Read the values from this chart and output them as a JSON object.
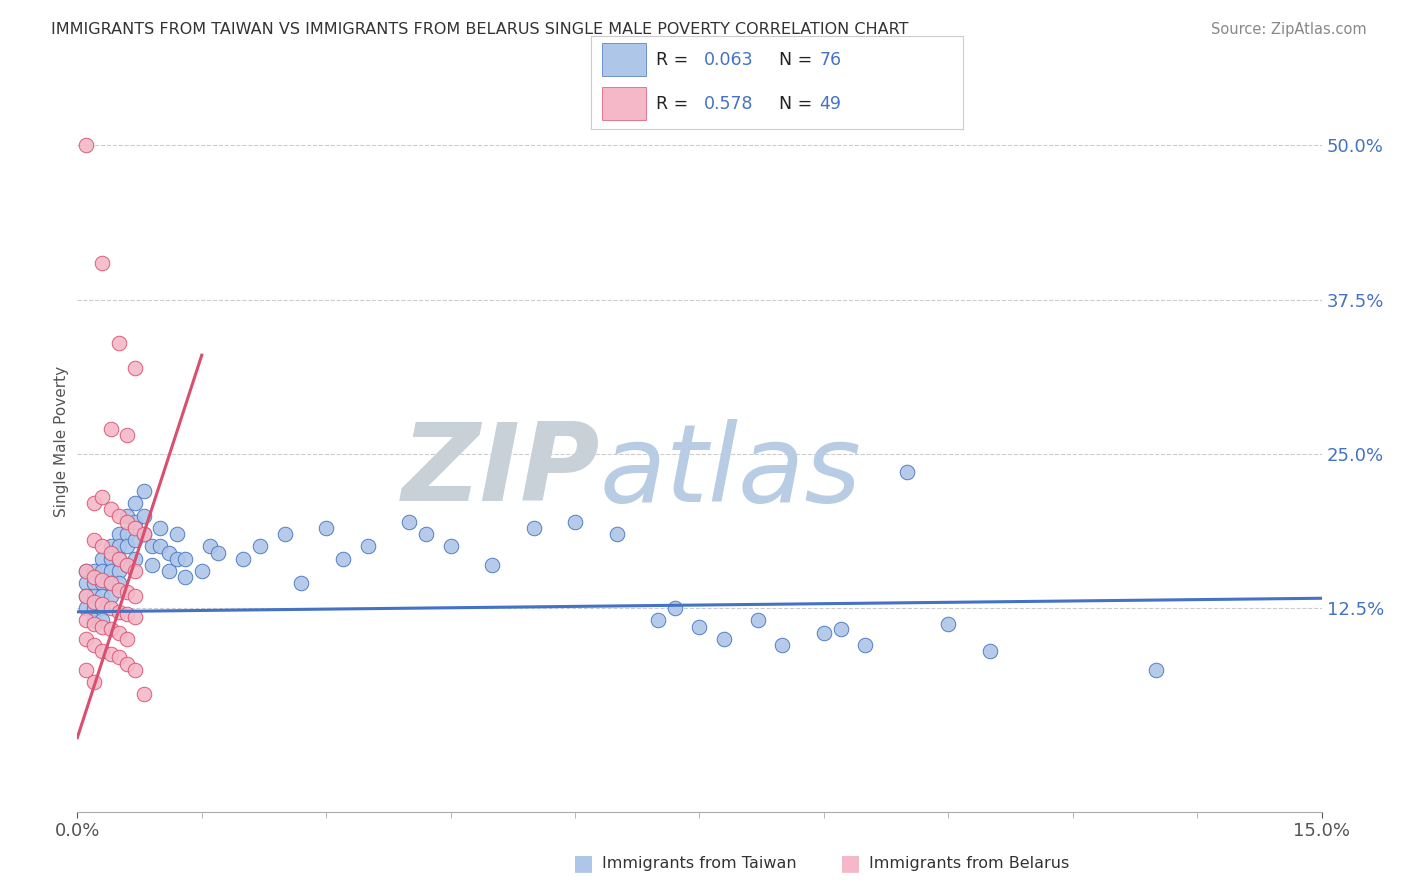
{
  "title": "IMMIGRANTS FROM TAIWAN VS IMMIGRANTS FROM BELARUS SINGLE MALE POVERTY CORRELATION CHART",
  "source": "Source: ZipAtlas.com",
  "ylabel": "Single Male Poverty",
  "y_ticks": [
    0.0,
    0.125,
    0.25,
    0.375,
    0.5
  ],
  "y_tick_labels": [
    "",
    "12.5%",
    "25.0%",
    "37.5%",
    "50.0%"
  ],
  "x_range": [
    0.0,
    0.15
  ],
  "y_range": [
    -0.04,
    0.56
  ],
  "taiwan_R": 0.063,
  "taiwan_N": 76,
  "belarus_R": 0.578,
  "belarus_N": 49,
  "taiwan_color": "#aec6e8",
  "belarus_color": "#f4b8c8",
  "taiwan_line_color": "#4472c4",
  "belarus_line_color": "#d94f6e",
  "taiwan_scatter": [
    [
      0.001,
      0.155
    ],
    [
      0.001,
      0.145
    ],
    [
      0.001,
      0.135
    ],
    [
      0.001,
      0.125
    ],
    [
      0.002,
      0.155
    ],
    [
      0.002,
      0.145
    ],
    [
      0.002,
      0.135
    ],
    [
      0.002,
      0.125
    ],
    [
      0.002,
      0.115
    ],
    [
      0.003,
      0.165
    ],
    [
      0.003,
      0.155
    ],
    [
      0.003,
      0.145
    ],
    [
      0.003,
      0.135
    ],
    [
      0.003,
      0.125
    ],
    [
      0.003,
      0.115
    ],
    [
      0.004,
      0.175
    ],
    [
      0.004,
      0.165
    ],
    [
      0.004,
      0.155
    ],
    [
      0.004,
      0.145
    ],
    [
      0.004,
      0.135
    ],
    [
      0.005,
      0.185
    ],
    [
      0.005,
      0.175
    ],
    [
      0.005,
      0.165
    ],
    [
      0.005,
      0.155
    ],
    [
      0.005,
      0.145
    ],
    [
      0.006,
      0.2
    ],
    [
      0.006,
      0.185
    ],
    [
      0.006,
      0.175
    ],
    [
      0.006,
      0.16
    ],
    [
      0.007,
      0.21
    ],
    [
      0.007,
      0.195
    ],
    [
      0.007,
      0.18
    ],
    [
      0.007,
      0.165
    ],
    [
      0.008,
      0.22
    ],
    [
      0.008,
      0.2
    ],
    [
      0.008,
      0.185
    ],
    [
      0.009,
      0.175
    ],
    [
      0.009,
      0.16
    ],
    [
      0.01,
      0.19
    ],
    [
      0.01,
      0.175
    ],
    [
      0.011,
      0.17
    ],
    [
      0.011,
      0.155
    ],
    [
      0.012,
      0.185
    ],
    [
      0.012,
      0.165
    ],
    [
      0.013,
      0.15
    ],
    [
      0.013,
      0.165
    ],
    [
      0.015,
      0.155
    ],
    [
      0.016,
      0.175
    ],
    [
      0.017,
      0.17
    ],
    [
      0.02,
      0.165
    ],
    [
      0.022,
      0.175
    ],
    [
      0.025,
      0.185
    ],
    [
      0.027,
      0.145
    ],
    [
      0.03,
      0.19
    ],
    [
      0.032,
      0.165
    ],
    [
      0.035,
      0.175
    ],
    [
      0.04,
      0.195
    ],
    [
      0.042,
      0.185
    ],
    [
      0.045,
      0.175
    ],
    [
      0.05,
      0.16
    ],
    [
      0.055,
      0.19
    ],
    [
      0.06,
      0.195
    ],
    [
      0.065,
      0.185
    ],
    [
      0.07,
      0.115
    ],
    [
      0.072,
      0.125
    ],
    [
      0.075,
      0.11
    ],
    [
      0.078,
      0.1
    ],
    [
      0.082,
      0.115
    ],
    [
      0.085,
      0.095
    ],
    [
      0.09,
      0.105
    ],
    [
      0.092,
      0.108
    ],
    [
      0.095,
      0.095
    ],
    [
      0.1,
      0.235
    ],
    [
      0.105,
      0.112
    ],
    [
      0.11,
      0.09
    ],
    [
      0.13,
      0.075
    ]
  ],
  "belarus_scatter": [
    [
      0.001,
      0.5
    ],
    [
      0.003,
      0.405
    ],
    [
      0.005,
      0.34
    ],
    [
      0.007,
      0.32
    ],
    [
      0.004,
      0.27
    ],
    [
      0.006,
      0.265
    ],
    [
      0.002,
      0.21
    ],
    [
      0.003,
      0.215
    ],
    [
      0.004,
      0.205
    ],
    [
      0.005,
      0.2
    ],
    [
      0.006,
      0.195
    ],
    [
      0.007,
      0.19
    ],
    [
      0.008,
      0.185
    ],
    [
      0.002,
      0.18
    ],
    [
      0.003,
      0.175
    ],
    [
      0.004,
      0.17
    ],
    [
      0.005,
      0.165
    ],
    [
      0.006,
      0.16
    ],
    [
      0.007,
      0.155
    ],
    [
      0.001,
      0.155
    ],
    [
      0.002,
      0.15
    ],
    [
      0.003,
      0.148
    ],
    [
      0.004,
      0.145
    ],
    [
      0.005,
      0.14
    ],
    [
      0.006,
      0.138
    ],
    [
      0.007,
      0.135
    ],
    [
      0.001,
      0.135
    ],
    [
      0.002,
      0.13
    ],
    [
      0.003,
      0.128
    ],
    [
      0.004,
      0.125
    ],
    [
      0.005,
      0.122
    ],
    [
      0.006,
      0.12
    ],
    [
      0.007,
      0.118
    ],
    [
      0.001,
      0.115
    ],
    [
      0.002,
      0.112
    ],
    [
      0.003,
      0.11
    ],
    [
      0.004,
      0.108
    ],
    [
      0.005,
      0.105
    ],
    [
      0.006,
      0.1
    ],
    [
      0.001,
      0.1
    ],
    [
      0.002,
      0.095
    ],
    [
      0.003,
      0.09
    ],
    [
      0.004,
      0.088
    ],
    [
      0.005,
      0.085
    ],
    [
      0.006,
      0.08
    ],
    [
      0.007,
      0.075
    ],
    [
      0.001,
      0.075
    ],
    [
      0.002,
      0.065
    ],
    [
      0.008,
      0.055
    ]
  ],
  "watermark_zip": "ZIP",
  "watermark_atlas": "atlas",
  "background_color": "#ffffff",
  "grid_color": "#cccccc"
}
